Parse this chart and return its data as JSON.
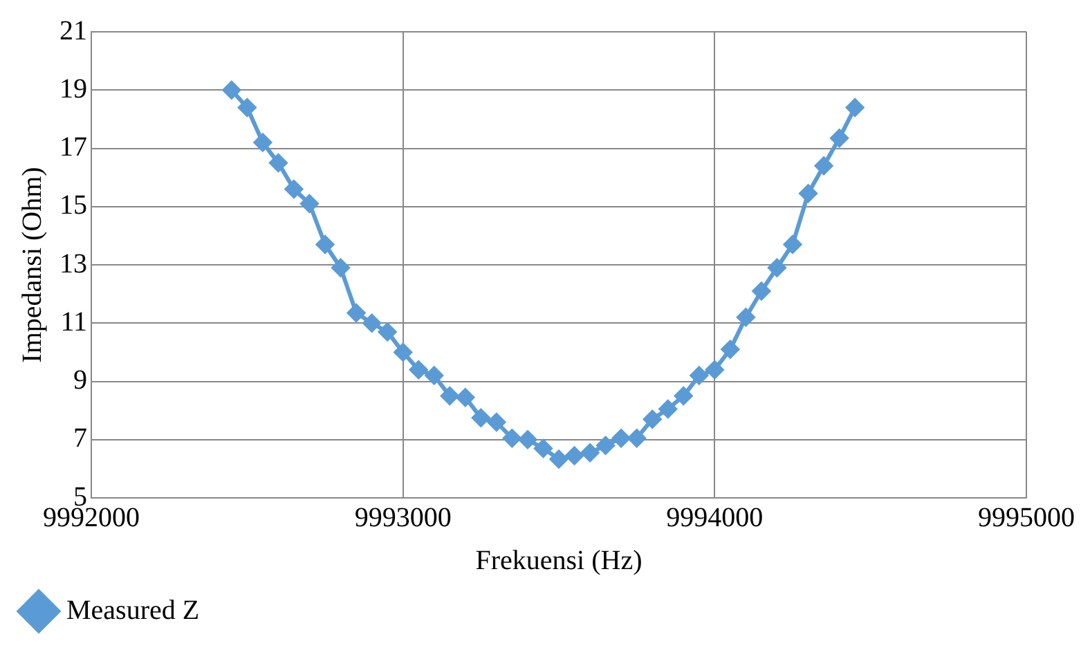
{
  "chart_data": {
    "type": "line",
    "xlabel": "Frekuensi (Hz)",
    "ylabel": "Impedansi (Ohm)",
    "x": [
      9992450,
      9992500,
      9992550,
      9992600,
      9992650,
      9992700,
      9992750,
      9992800,
      9992850,
      9992900,
      9992950,
      9993000,
      9993050,
      9993100,
      9993150,
      9993200,
      9993250,
      9993300,
      9993350,
      9993400,
      9993450,
      9993500,
      9993550,
      9993600,
      9993650,
      9993700,
      9993750,
      9993800,
      9993850,
      9993900,
      9993950,
      9994000,
      9994050,
      9994100,
      9994150,
      9994200,
      9994250,
      9994300,
      9994350,
      9994400,
      9994450
    ],
    "series": [
      {
        "name": "Measured Z",
        "color": "#5b9bd5",
        "values": [
          19.0,
          18.4,
          17.2,
          16.5,
          15.6,
          15.1,
          13.7,
          12.9,
          11.35,
          11.0,
          10.7,
          10.0,
          9.4,
          9.2,
          8.5,
          8.45,
          7.75,
          7.6,
          7.05,
          7.0,
          6.7,
          6.33,
          6.45,
          6.55,
          6.8,
          7.05,
          7.05,
          7.7,
          8.05,
          8.5,
          9.2,
          9.4,
          10.1,
          11.2,
          12.1,
          12.9,
          13.7,
          15.45,
          16.4,
          17.35,
          18.4
        ]
      }
    ],
    "xlim": [
      9992000,
      9995000
    ],
    "xticks": [
      9992000,
      9993000,
      9994000,
      9995000
    ],
    "ylim": [
      5,
      21
    ],
    "yticks": [
      5,
      7,
      9,
      11,
      13,
      15,
      17,
      19,
      21
    ],
    "grid": true,
    "legend": "bottom left",
    "marker": "diamond",
    "line_style": "solid"
  }
}
